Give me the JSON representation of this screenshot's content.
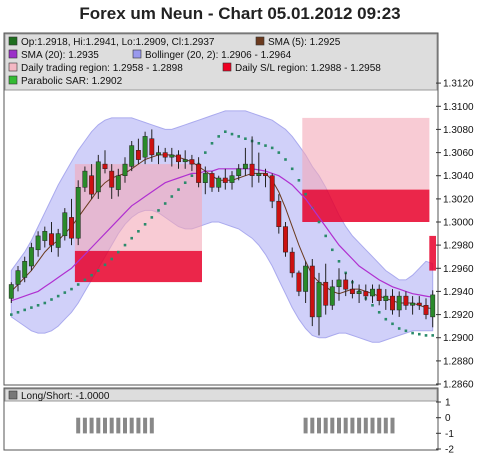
{
  "chart_data": [
    {
      "type": "candlestick",
      "title": "Forex um Neun - Chart 05.01.2012 09:23",
      "ylim": [
        1.286,
        1.314
      ],
      "yticks": [
        "1.2860",
        "1.2880",
        "1.2900",
        "1.2920",
        "1.2940",
        "1.2960",
        "1.2980",
        "1.3000",
        "1.3020",
        "1.3040",
        "1.3060",
        "1.3080",
        "1.3100",
        "1.3120"
      ],
      "legend": [
        {
          "label": "Op:1.2918, Hi:1.2941, Lo:1.2909, Cl:1.2937",
          "color": "#1f6f1f"
        },
        {
          "label": "SMA (5): 1.2925",
          "color": "#6b3a1e"
        },
        {
          "label": "SMA (20): 1.2935",
          "color": "#9b30c8"
        },
        {
          "label": "Bollinger (20, 2): 1.2906 - 1.2964",
          "color": "#9999ee"
        },
        {
          "label": "Daily trading region: 1.2958 - 1.2898",
          "color": "#f4b8c4"
        },
        {
          "label": "Daily S/L region: 1.2988 - 1.2958",
          "color": "#ee0022"
        },
        {
          "label": "Parabolic SAR: 1.2902",
          "color": "#33bb33"
        }
      ],
      "candles": [
        [
          1.2934,
          1.2948,
          1.293,
          1.2946
        ],
        [
          1.2946,
          1.2962,
          1.294,
          1.2958
        ],
        [
          1.2952,
          1.297,
          1.2948,
          1.2966
        ],
        [
          1.2962,
          1.2982,
          1.2958,
          1.2978
        ],
        [
          1.2976,
          1.2992,
          1.297,
          1.2988
        ],
        [
          1.2984,
          1.2996,
          1.2978,
          1.2992
        ],
        [
          1.299,
          1.3,
          1.2974,
          1.298
        ],
        [
          1.2978,
          1.2994,
          1.297,
          1.299
        ],
        [
          1.2988,
          1.3012,
          1.2984,
          1.3008
        ],
        [
          1.3004,
          1.302,
          1.298,
          1.2986
        ],
        [
          1.2986,
          1.3036,
          1.298,
          1.303
        ],
        [
          1.303,
          1.3048,
          1.3026,
          1.3044
        ],
        [
          1.304,
          1.305,
          1.302,
          1.3024
        ],
        [
          1.3026,
          1.3058,
          1.302,
          1.3052
        ],
        [
          1.305,
          1.3062,
          1.3042,
          1.3046
        ],
        [
          1.3044,
          1.305,
          1.302,
          1.303
        ],
        [
          1.3028,
          1.3046,
          1.3022,
          1.304
        ],
        [
          1.304,
          1.3056,
          1.3034,
          1.305
        ],
        [
          1.3048,
          1.307,
          1.3044,
          1.3066
        ],
        [
          1.3062,
          1.3072,
          1.305,
          1.3054
        ],
        [
          1.3056,
          1.3078,
          1.305,
          1.3074
        ],
        [
          1.3072,
          1.308,
          1.3052,
          1.3058
        ],
        [
          1.3058,
          1.3066,
          1.305,
          1.306
        ],
        [
          1.306,
          1.3064,
          1.3052,
          1.3056
        ],
        [
          1.3056,
          1.3064,
          1.3048,
          1.3058
        ],
        [
          1.3058,
          1.3062,
          1.3046,
          1.3052
        ],
        [
          1.3052,
          1.3062,
          1.3046,
          1.3054
        ],
        [
          1.3054,
          1.3058,
          1.3044,
          1.305
        ],
        [
          1.305,
          1.3056,
          1.303,
          1.3034
        ],
        [
          1.3034,
          1.3048,
          1.3024,
          1.3042
        ],
        [
          1.3042,
          1.3044,
          1.3026,
          1.303
        ],
        [
          1.303,
          1.304,
          1.3026,
          1.3038
        ],
        [
          1.3038,
          1.3046,
          1.3028,
          1.3034
        ],
        [
          1.3034,
          1.3044,
          1.3028,
          1.304
        ],
        [
          1.304,
          1.305,
          1.3036,
          1.3046
        ],
        [
          1.3046,
          1.3064,
          1.304,
          1.305
        ],
        [
          1.305,
          1.3074,
          1.303,
          1.304
        ],
        [
          1.304,
          1.306,
          1.3034,
          1.3042
        ],
        [
          1.3042,
          1.3046,
          1.303,
          1.304
        ],
        [
          1.304,
          1.3042,
          1.3012,
          1.3018
        ],
        [
          1.3018,
          1.3024,
          1.299,
          1.2996
        ],
        [
          1.2996,
          1.3,
          1.297,
          1.2974
        ],
        [
          1.2974,
          1.2978,
          1.2952,
          1.2956
        ],
        [
          1.2956,
          1.2958,
          1.2936,
          1.294
        ],
        [
          1.294,
          1.2966,
          1.293,
          1.2962
        ],
        [
          1.2962,
          1.2968,
          1.291,
          1.2918
        ],
        [
          1.2918,
          1.2956,
          1.2902,
          1.2948
        ],
        [
          1.2948,
          1.2964,
          1.292,
          1.2928
        ],
        [
          1.2928,
          1.295,
          1.2924,
          1.2944
        ],
        [
          1.2944,
          1.296,
          1.2932,
          1.295
        ],
        [
          1.295,
          1.2956,
          1.2936,
          1.2942
        ],
        [
          1.2942,
          1.295,
          1.2934,
          1.2938
        ],
        [
          1.2938,
          1.2946,
          1.293,
          1.294
        ],
        [
          1.294,
          1.2946,
          1.2932,
          1.2936
        ],
        [
          1.2936,
          1.2946,
          1.293,
          1.2942
        ],
        [
          1.2942,
          1.2946,
          1.2928,
          1.2932
        ],
        [
          1.2932,
          1.2942,
          1.2924,
          1.2936
        ],
        [
          1.2936,
          1.2942,
          1.292,
          1.2924
        ],
        [
          1.2924,
          1.294,
          1.2918,
          1.2936
        ],
        [
          1.2936,
          1.294,
          1.2924,
          1.2928
        ],
        [
          1.2928,
          1.2936,
          1.292,
          1.293
        ],
        [
          1.293,
          1.2936,
          1.2924,
          1.2928
        ],
        [
          1.2928,
          1.2934,
          1.2916,
          1.292
        ],
        [
          1.2918,
          1.2941,
          1.2909,
          1.2937
        ]
      ],
      "sma5": [
        1.294,
        1.2946,
        1.2952,
        1.2958,
        1.2966,
        1.2974,
        1.298,
        1.2984,
        1.299,
        1.2996,
        1.3004,
        1.3012,
        1.302,
        1.3028,
        1.3034,
        1.3038,
        1.304,
        1.3042,
        1.3046,
        1.305,
        1.3054,
        1.3056,
        1.3058,
        1.3058,
        1.3058,
        1.3056,
        1.3054,
        1.3052,
        1.3048,
        1.3044,
        1.304,
        1.3036,
        1.3036,
        1.3036,
        1.3038,
        1.304,
        1.3042,
        1.3042,
        1.3042,
        1.3036,
        1.3026,
        1.3012,
        1.2996,
        1.298,
        1.2966,
        1.2954,
        1.2948,
        1.2944,
        1.294,
        1.2938,
        1.294,
        1.2942,
        1.2942,
        1.294,
        1.2938,
        1.2936,
        1.2934,
        1.2932,
        1.293,
        1.293,
        1.293,
        1.2928,
        1.2926,
        1.2925
      ],
      "sma20": [
        1.2932,
        1.2934,
        1.2936,
        1.2938,
        1.294,
        1.2944,
        1.2948,
        1.2952,
        1.2956,
        1.296,
        1.2966,
        1.2972,
        1.2978,
        1.2984,
        1.299,
        1.2996,
        1.3002,
        1.3008,
        1.3014,
        1.3018,
        1.3022,
        1.3026,
        1.303,
        1.3034,
        1.3036,
        1.3038,
        1.304,
        1.3042,
        1.3042,
        1.3044,
        1.3044,
        1.3046,
        1.3046,
        1.3046,
        1.3046,
        1.3046,
        1.3046,
        1.3045,
        1.3044,
        1.3042,
        1.304,
        1.3036,
        1.3032,
        1.3026,
        1.302,
        1.3012,
        1.3004,
        1.2996,
        1.2988,
        1.298,
        1.2974,
        1.2968,
        1.2962,
        1.2958,
        1.2954,
        1.295,
        1.2947,
        1.2944,
        1.2942,
        1.294,
        1.2938,
        1.2937,
        1.2936,
        1.2935
      ],
      "boll_upper": [
        1.2958,
        1.2966,
        1.2974,
        1.2984,
        1.2996,
        1.3008,
        1.302,
        1.3032,
        1.3042,
        1.3052,
        1.3062,
        1.307,
        1.3078,
        1.3084,
        1.3088,
        1.309,
        1.309,
        1.309,
        1.309,
        1.3088,
        1.3086,
        1.3084,
        1.3082,
        1.308,
        1.308,
        1.3082,
        1.3084,
        1.3086,
        1.3088,
        1.309,
        1.3092,
        1.3094,
        1.3096,
        1.3096,
        1.3096,
        1.3096,
        1.3094,
        1.3092,
        1.309,
        1.3088,
        1.3084,
        1.308,
        1.3074,
        1.3066,
        1.3058,
        1.3048,
        1.304,
        1.303,
        1.3018,
        1.3006,
        1.2996,
        1.2988,
        1.2982,
        1.2976,
        1.297,
        1.2964,
        1.2958,
        1.2954,
        1.295,
        1.295,
        1.2954,
        1.296,
        1.2966,
        1.2964
      ],
      "boll_lower": [
        1.2918,
        1.2914,
        1.291,
        1.2906,
        1.2904,
        1.2904,
        1.2906,
        1.291,
        1.2916,
        1.2922,
        1.293,
        1.294,
        1.295,
        1.296,
        1.297,
        1.298,
        1.299,
        1.2998,
        1.3004,
        1.3008,
        1.301,
        1.301,
        1.3008,
        1.3004,
        1.3,
        1.2996,
        1.2994,
        1.2994,
        1.2996,
        1.2998,
        1.3,
        1.3,
        1.2998,
        1.2996,
        1.2994,
        1.299,
        1.2986,
        1.298,
        1.2972,
        1.2962,
        1.295,
        1.2938,
        1.2926,
        1.2916,
        1.2908,
        1.2902,
        1.29,
        1.29,
        1.2902,
        1.2904,
        1.2904,
        1.2902,
        1.29,
        1.2898,
        1.2896,
        1.2896,
        1.2898,
        1.29,
        1.2902,
        1.2904,
        1.2906,
        1.2906,
        1.2906,
        1.2906
      ],
      "sar": [
        1.292,
        1.2922,
        1.2924,
        1.2926,
        1.2928,
        1.293,
        1.2933,
        1.2936,
        1.2939,
        1.2942,
        1.2946,
        1.295,
        1.2954,
        1.2958,
        1.2963,
        1.2968,
        1.2974,
        1.298,
        1.2986,
        1.2992,
        1.2998,
        1.3004,
        1.301,
        1.3016,
        1.3022,
        1.3028,
        1.3034,
        1.304,
        1.305,
        1.306,
        1.3068,
        1.3074,
        1.3078,
        1.3076,
        1.3074,
        1.3072,
        1.307,
        1.3068,
        1.3066,
        1.3064,
        1.306,
        1.3054,
        1.3046,
        1.3036,
        1.3024,
        1.3012,
        1.3,
        1.2988,
        1.2976,
        1.2966,
        1.2956,
        1.2948,
        1.294,
        1.2934,
        1.2928,
        1.2922,
        1.2916,
        1.2912,
        1.2908,
        1.2906,
        1.2904,
        1.2903,
        1.2902,
        1.2902
      ],
      "region_blocks": [
        {
          "from": 10,
          "to": 28,
          "top": 1.305,
          "mid": 1.2975,
          "bottom": 1.2948
        },
        {
          "from": 44,
          "to": 62,
          "top": 1.309,
          "mid": 1.3028,
          "bottom": 1.3
        },
        {
          "from": 63,
          "to": 63,
          "top": 1.2988,
          "mid": 1.2988,
          "bottom": 1.2958
        }
      ]
    },
    {
      "type": "bar",
      "title": "Long/Short: -1.0000",
      "ylim": [
        -2,
        1
      ],
      "yticks": [
        "1",
        "0",
        "-1",
        "-2"
      ],
      "segments": [
        [
          10,
          21
        ],
        [
          44,
          57
        ]
      ]
    }
  ]
}
